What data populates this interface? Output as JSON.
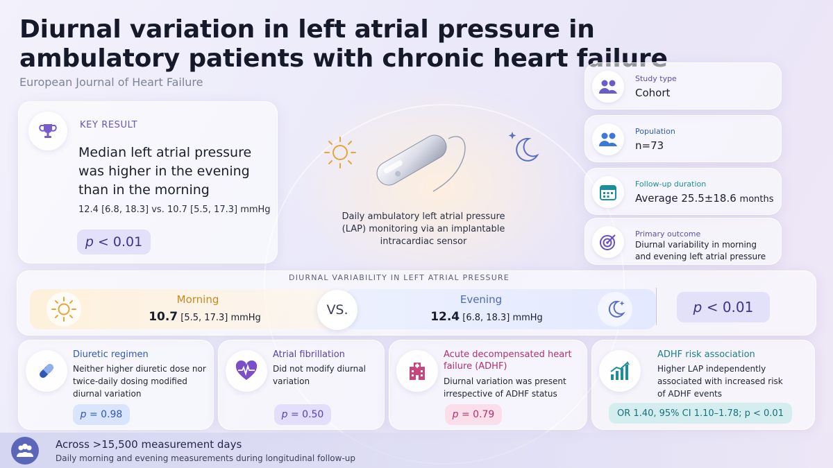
{
  "header": {
    "title": "Diurnal variation in left atrial pressure in ambulatory patients with chronic heart failure",
    "journal": "European Journal of Heart Failure"
  },
  "key_result": {
    "label": "KEY RESULT",
    "headline": "Median left atrial pressure was higher in the evening than in the morning",
    "detail": "12.4 [6.8, 18.3] vs. 10.7 [5.5, 17.3] mmHg",
    "p_label": "p",
    "p_value": "< 0.01",
    "icon": "trophy-icon"
  },
  "device": {
    "caption": "Daily ambulatory left atrial pressure (LAP) monitoring via an implantable intracardiac sensor"
  },
  "stats": [
    {
      "label": "Study type",
      "value": "Cohort",
      "icon": "people-icon"
    },
    {
      "label": "Population",
      "value": "n=73",
      "icon": "group-icon"
    },
    {
      "label": "Follow-up duration",
      "value_prefix": "Average",
      "value": "25.5±18.6",
      "value_suffix": "months",
      "icon": "calendar-icon"
    },
    {
      "label": "Primary outcome",
      "value": "Diurnal variability in morning and evening left atrial pressure",
      "icon": "target-icon"
    }
  ],
  "diurnal": {
    "heading": "DIURNAL VARIABILITY IN LEFT ATRIAL PRESSURE",
    "morning": {
      "name": "Morning",
      "value": "10.7",
      "range": "[5.5, 17.3]",
      "unit": "mmHg"
    },
    "vs": "VS.",
    "evening": {
      "name": "Evening",
      "value": "12.4",
      "range": "[6.8, 18.3]",
      "unit": "mmHg"
    },
    "p_label": "p",
    "p_value": "< 0.01"
  },
  "findings": [
    {
      "title": "Diuretic regimen",
      "body": "Neither higher diuretic dose nor twice-daily dosing modified diurnal variation",
      "p_label": "p",
      "p_value": "= 0.98",
      "color": "#2f58b5",
      "icon": "pill-icon"
    },
    {
      "title": "Atrial fibrillation",
      "body": "Did not modify diurnal variation",
      "p_label": "p",
      "p_value": "= 0.50",
      "color": "#5a3fb0",
      "icon": "heart-pulse-icon"
    },
    {
      "title": "Acute decompensated heart failure (ADHF)",
      "body": "Diurnal variation was present irrespective of ADHF status",
      "p_label": "p",
      "p_value": "= 0.79",
      "color": "#b2306e",
      "icon": "hospital-icon"
    },
    {
      "title": "ADHF risk association",
      "body": "Higher LAP independently associated with increased risk of ADHF events",
      "stat": "OR 1.40, 95% CI 1.10–1.78; p < 0.01",
      "color": "#1a7f8a",
      "icon": "trend-up-icon"
    }
  ],
  "footer": {
    "line1": "Across >15,500 measurement days",
    "line2": "Daily morning and evening measurements during longitudinal follow-up",
    "icon": "group-icon"
  }
}
